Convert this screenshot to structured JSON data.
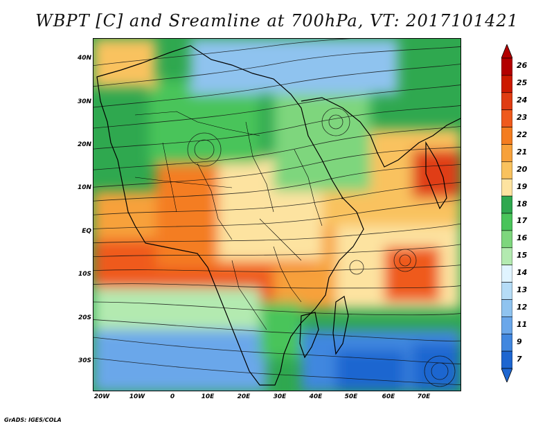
{
  "title": "WBPT [C] and Sreamline at 700hPa, VT: 2017101421",
  "footer": "GrADS: IGES/COLA",
  "axes": {
    "y_ticks": [
      "40N",
      "30N",
      "20N",
      "10N",
      "EQ",
      "10S",
      "20S",
      "30S"
    ],
    "x_ticks": [
      "20W",
      "10W",
      "0",
      "10E",
      "20E",
      "30E",
      "40E",
      "50E",
      "60E",
      "70E"
    ]
  },
  "colorbar": {
    "labels": [
      "26",
      "25",
      "24",
      "23",
      "22",
      "21",
      "20",
      "19",
      "18",
      "17",
      "16",
      "15",
      "14",
      "13",
      "12",
      "11",
      "9",
      "7"
    ],
    "colors": [
      "#b30000",
      "#cc1a00",
      "#e03c12",
      "#ef5a1c",
      "#f47d20",
      "#f7a13a",
      "#f9c25e",
      "#fde3a0",
      "#2fa84f",
      "#49c45a",
      "#7ed67d",
      "#b3eab0",
      "#e0f4ff",
      "#b5dcf6",
      "#8fc3ef",
      "#6aa7ea",
      "#4187df",
      "#1e66d0"
    ]
  }
}
